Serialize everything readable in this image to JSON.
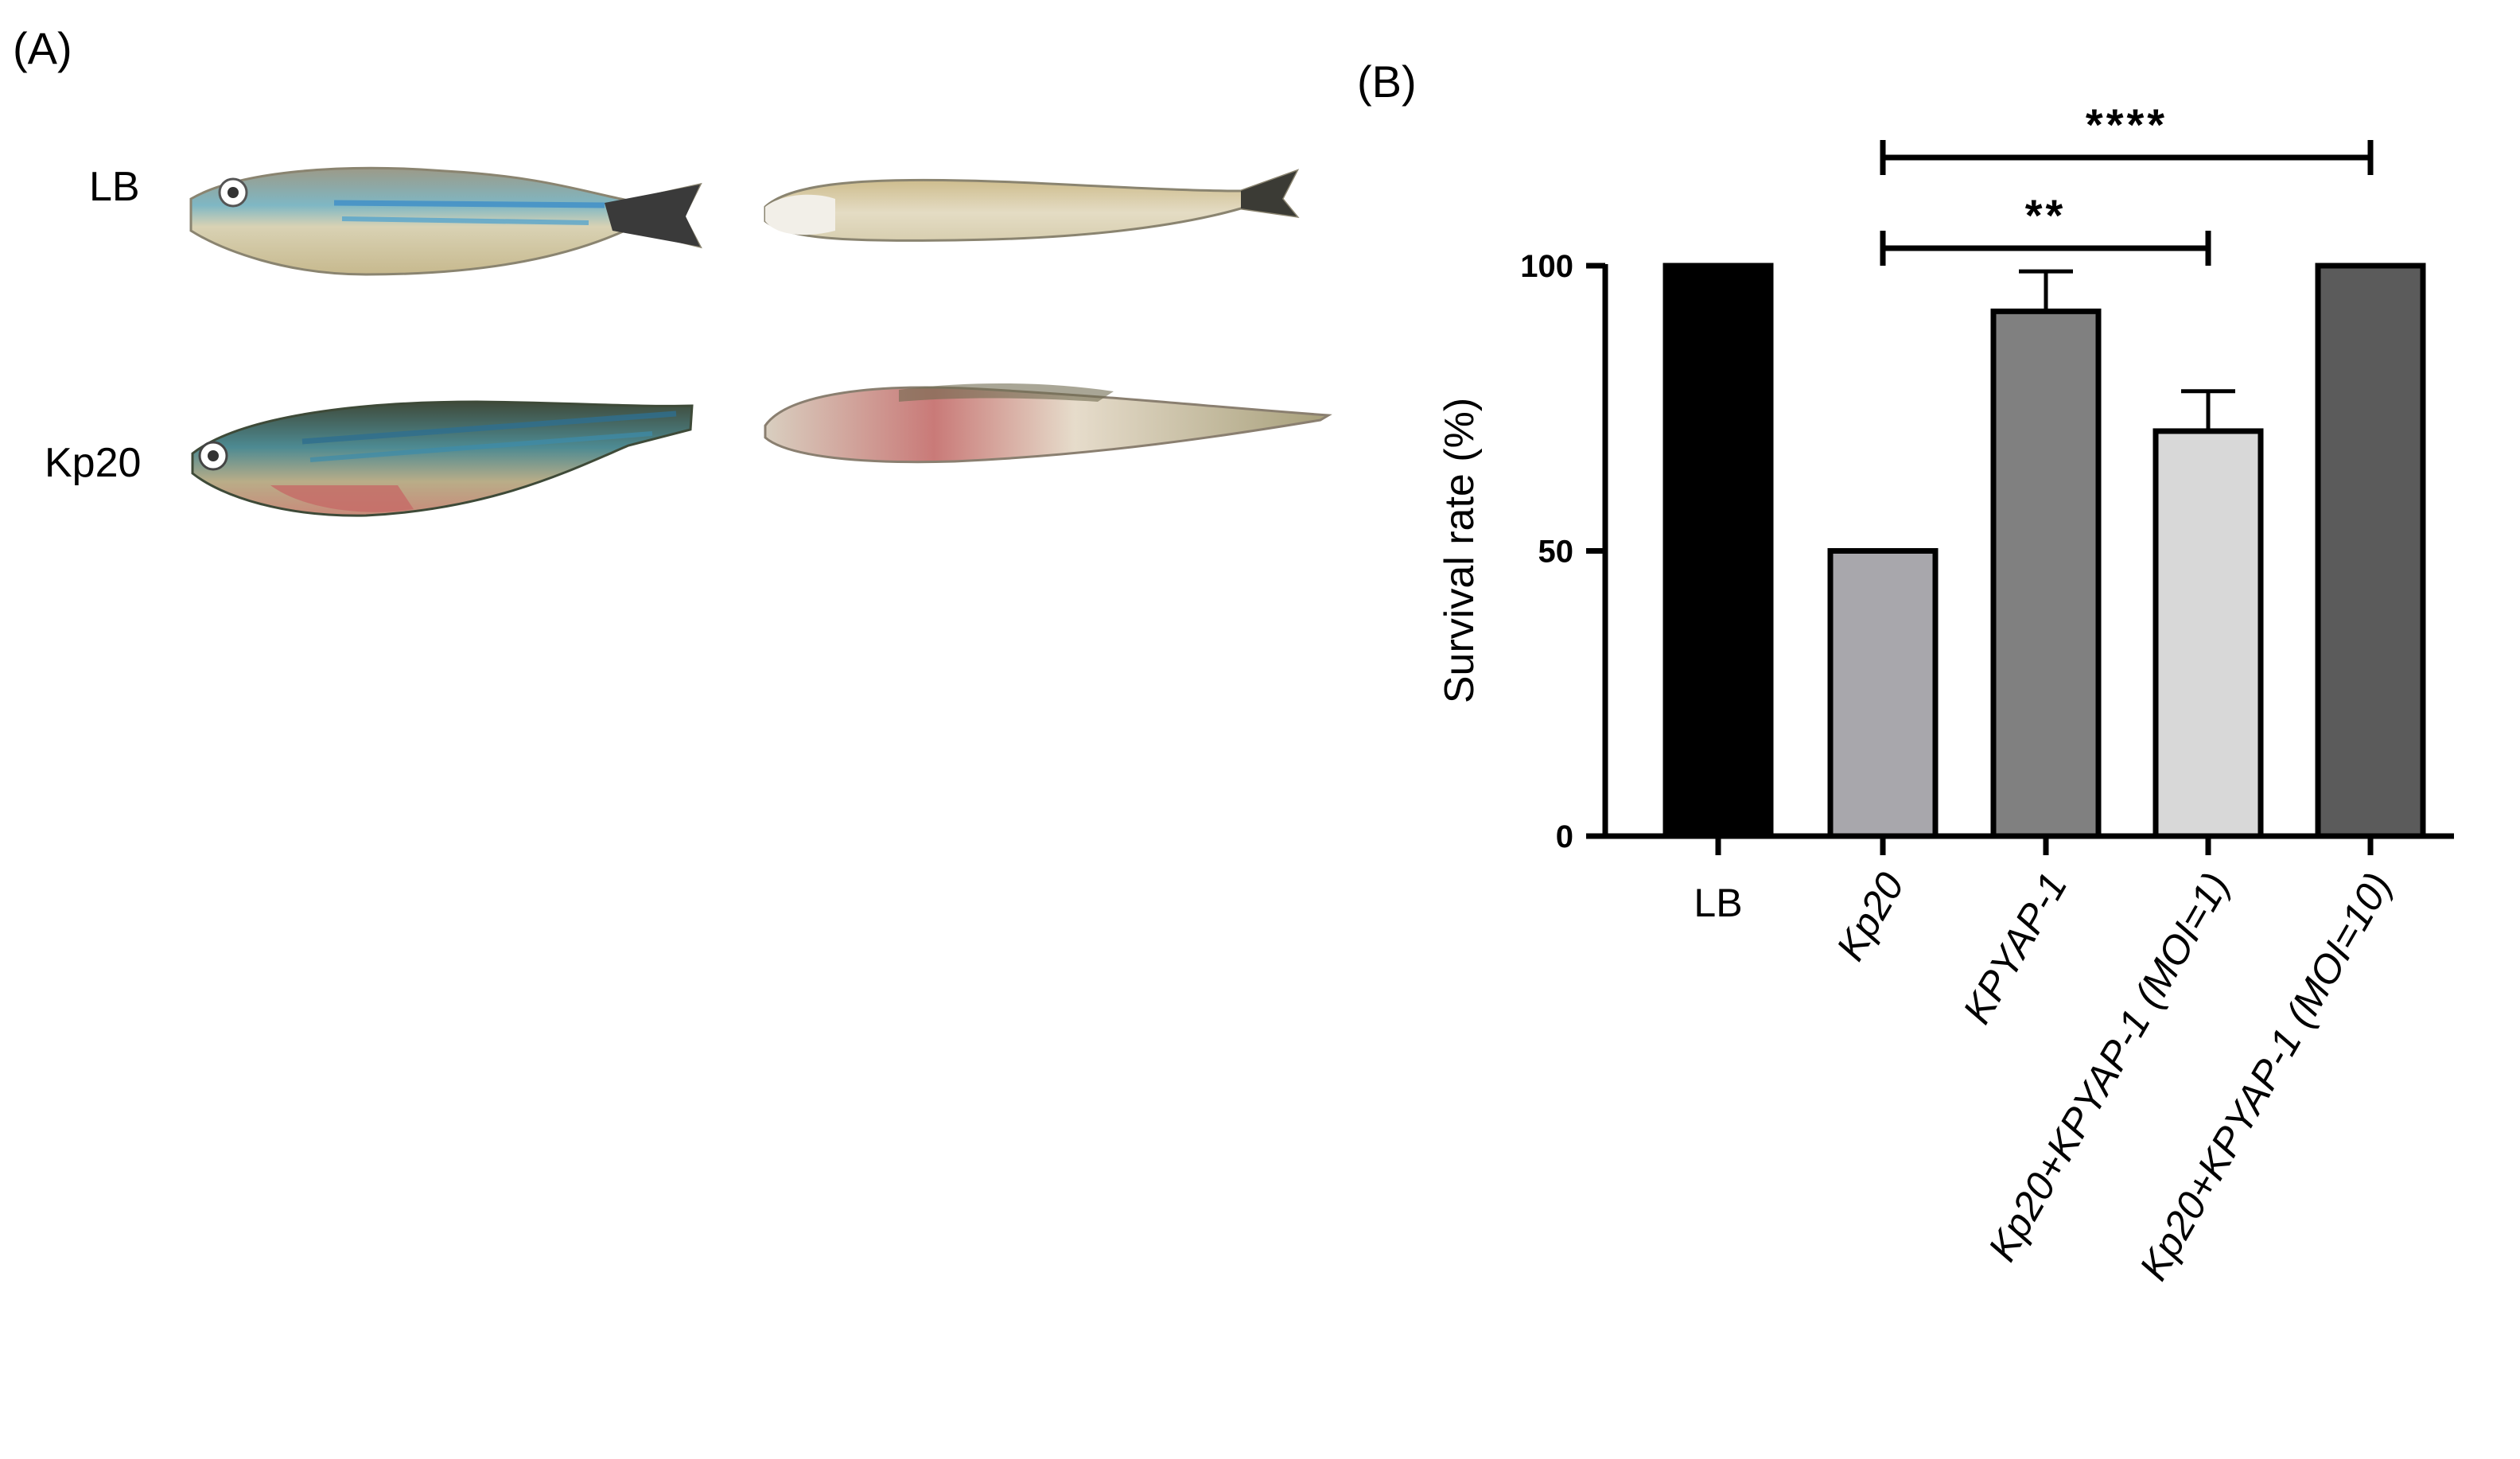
{
  "panel_a": {
    "label": "(A)",
    "row_labels": [
      "LB",
      "Kp20"
    ]
  },
  "panel_b": {
    "label": "(B)"
  },
  "chart_data": {
    "type": "bar",
    "categories": [
      "LB",
      "Kp20",
      "KPYAP-1",
      "Kp20+KPYAP-1 (MOI=1)",
      "Kp20+KPYAP-1 (MOI=10)"
    ],
    "italic_categories": [
      false,
      true,
      true,
      true,
      true
    ],
    "values": [
      100,
      50,
      92,
      71,
      100
    ],
    "errors": [
      0,
      0,
      7,
      7,
      0
    ],
    "bar_colors": [
      "#000000",
      "#a8a7ac",
      "#808080",
      "#d8d8d8",
      "#5b5b5b"
    ],
    "xlabel": "",
    "ylabel": "Survival rate (%)",
    "ylim": [
      0,
      100
    ],
    "yticks": [
      0,
      50,
      100
    ],
    "significance": [
      {
        "from": 1,
        "to": 3,
        "label": "**"
      },
      {
        "from": 1,
        "to": 4,
        "label": "****"
      }
    ],
    "grid": false
  }
}
